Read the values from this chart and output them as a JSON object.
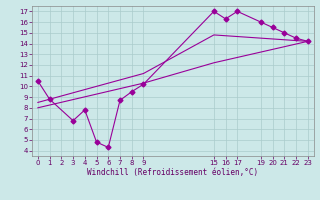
{
  "background_color": "#cce8e8",
  "grid_color": "#aacccc",
  "line_color": "#990099",
  "xlabel": "Windchill (Refroidissement éolien,°C)",
  "xlim": [
    -0.5,
    23.5
  ],
  "ylim": [
    3.5,
    17.5
  ],
  "xticks": [
    0,
    1,
    2,
    3,
    4,
    5,
    6,
    7,
    8,
    9,
    15,
    16,
    17,
    19,
    20,
    21,
    22,
    23
  ],
  "yticks": [
    4,
    5,
    6,
    7,
    8,
    9,
    10,
    11,
    12,
    13,
    14,
    15,
    16,
    17
  ],
  "line1_x": [
    0,
    1,
    3,
    4,
    5,
    6,
    7,
    8,
    9,
    15,
    16,
    17,
    19,
    20,
    21,
    22,
    23
  ],
  "line1_y": [
    10.5,
    8.8,
    6.8,
    7.8,
    4.8,
    4.3,
    8.7,
    9.5,
    10.2,
    17.0,
    16.3,
    17.0,
    16.0,
    15.5,
    15.0,
    14.5,
    14.2
  ],
  "line2_x": [
    0,
    9,
    15,
    23
  ],
  "line2_y": [
    8.0,
    10.3,
    12.2,
    14.2
  ],
  "line3_x": [
    0,
    9,
    15,
    23
  ],
  "line3_y": [
    8.5,
    11.2,
    14.8,
    14.2
  ],
  "marker": "D",
  "markersize": 2.5,
  "linewidth": 0.8,
  "tick_fontsize": 5,
  "xlabel_fontsize": 5.5
}
